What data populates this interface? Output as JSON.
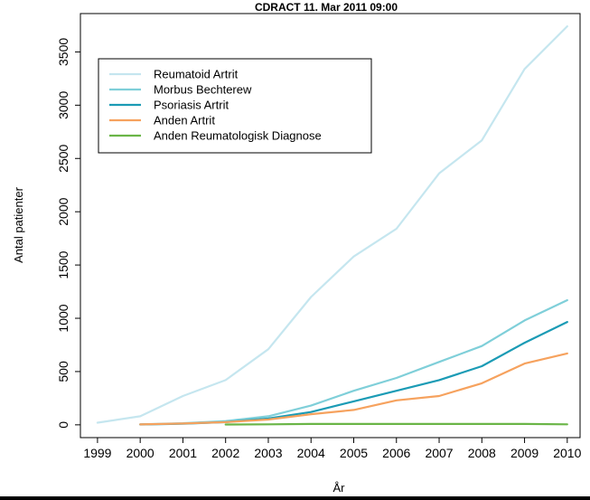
{
  "chart_data": {
    "type": "line",
    "title": "CDRACT  11. Mar 2011 09:00",
    "xlabel": "År",
    "ylabel": "Antal patienter",
    "x": [
      1999,
      2000,
      2001,
      2002,
      2003,
      2004,
      2005,
      2006,
      2007,
      2008,
      2009,
      2010
    ],
    "x_tick_labels": [
      "1999",
      "2000",
      "2001",
      "2002",
      "2003",
      "2004",
      "2005",
      "2006",
      "2007",
      "2008",
      "2009",
      "2010"
    ],
    "y_ticks": [
      0,
      500,
      1000,
      1500,
      2000,
      2500,
      3000,
      3500
    ],
    "xlim": [
      1998.6,
      2010.3
    ],
    "ylim": [
      -120,
      3860
    ],
    "grid": false,
    "legend_position": "top-left",
    "series": [
      {
        "name": "Reumatoid Artrit",
        "color": "#c5e6ef",
        "x": [
          1999,
          2000,
          2001,
          2002,
          2003,
          2004,
          2005,
          2006,
          2007,
          2008,
          2009,
          2010
        ],
        "values": [
          20,
          80,
          270,
          420,
          710,
          1200,
          1580,
          1840,
          2360,
          2670,
          3340,
          3740
        ]
      },
      {
        "name": "Morbus Bechterew",
        "color": "#7fcfd9",
        "x": [
          2000,
          2001,
          2002,
          2003,
          2004,
          2005,
          2006,
          2007,
          2008,
          2009,
          2010
        ],
        "values": [
          5,
          15,
          35,
          80,
          180,
          320,
          440,
          590,
          740,
          980,
          1170
        ]
      },
      {
        "name": "Psoriasis Artrit",
        "color": "#1b9bb5",
        "x": [
          2000,
          2001,
          2002,
          2003,
          2004,
          2005,
          2006,
          2007,
          2008,
          2009,
          2010
        ],
        "values": [
          3,
          10,
          25,
          60,
          120,
          220,
          320,
          420,
          550,
          770,
          965
        ]
      },
      {
        "name": "Anden Artrit",
        "color": "#f6a25e",
        "x": [
          2000,
          2001,
          2002,
          2003,
          2004,
          2005,
          2006,
          2007,
          2008,
          2009,
          2010
        ],
        "values": [
          4,
          12,
          25,
          50,
          100,
          140,
          230,
          270,
          390,
          575,
          670
        ]
      },
      {
        "name": "Anden Reumatologisk Diagnose",
        "color": "#6ab547",
        "x": [
          2002,
          2003,
          2004,
          2005,
          2006,
          2007,
          2008,
          2009,
          2010
        ],
        "values": [
          3,
          5,
          8,
          8,
          8,
          8,
          8,
          8,
          5
        ]
      }
    ]
  }
}
